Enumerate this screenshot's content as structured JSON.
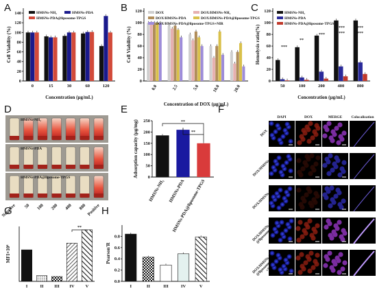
{
  "panels": [
    "A",
    "B",
    "C",
    "D",
    "E",
    "F",
    "G",
    "H"
  ],
  "chart_data": [
    {
      "id": "A",
      "type": "bar",
      "ylabel": "Cell Viability (%)",
      "xlabel": "Concentration (μg/mL)",
      "categories": [
        "0",
        "15",
        "30",
        "60",
        "120"
      ],
      "ylim": [
        0,
        150
      ],
      "yticks": [
        "0",
        "20",
        "40",
        "60",
        "80",
        "100",
        "120",
        "140"
      ],
      "series": [
        {
          "name": "HMSNs-NH₂",
          "color": "#111111",
          "values": [
            100,
            92,
            93,
            98,
            72
          ]
        },
        {
          "name": "HMSNs-PDA",
          "color": "#1a1a8c",
          "values": [
            100,
            90,
            100,
            101,
            134
          ]
        },
        {
          "name": "HMSNs-PDA@liposome-TPGS",
          "color": "#d24a3a",
          "values": [
            100,
            90,
            100,
            101,
            100
          ]
        }
      ]
    },
    {
      "id": "B",
      "type": "bar",
      "ylabel": "Cell Viability (%)",
      "xlabel": "Concentration of DOX (μg/mL)",
      "categories": [
        "0.0",
        "2.5",
        "5.0",
        "10.0",
        "20.0"
      ],
      "ylim": [
        0,
        125
      ],
      "yticks": [
        "0",
        "20",
        "40",
        "60",
        "80",
        "100",
        "120"
      ],
      "series": [
        {
          "name": "DOX",
          "color": "#cfcfcf",
          "values": [
            100,
            95,
            80,
            60,
            50
          ]
        },
        {
          "name": "DOX/HMSNs-NH₂",
          "color": "#e6b0b0",
          "values": [
            100,
            90,
            70,
            40,
            30
          ]
        },
        {
          "name": "DOX/HMSNs-PDA",
          "color": "#b08d5a",
          "values": [
            100,
            95,
            85,
            60,
            50
          ]
        },
        {
          "name": "DOX/HMSNs-PDA@liposome-TPGS",
          "color": "#d9c04a",
          "values": [
            100,
            88,
            75,
            85,
            65
          ]
        },
        {
          "name": "DOX/HMSNs-PDA@liposome-TPGS+NIR",
          "color": "#9d8cd9",
          "values": [
            100,
            75,
            60,
            45,
            25
          ]
        }
      ]
    },
    {
      "id": "C",
      "type": "bar",
      "ylabel": "Hemolysis ratio(%)",
      "xlabel": "Concentration (μg/mL)",
      "categories": [
        "50",
        "100",
        "200",
        "400",
        "800"
      ],
      "ylim": [
        0,
        125
      ],
      "yticks": [
        "0",
        "20",
        "40",
        "60",
        "80",
        "100",
        "120"
      ],
      "series": [
        {
          "name": "HMSNs-NH₂",
          "color": "#111111",
          "values": [
            36,
            58,
            78,
            104,
            104
          ]
        },
        {
          "name": "HMSNs-PDA",
          "color": "#2a2a9a",
          "values": [
            3,
            6,
            16,
            25,
            32
          ]
        },
        {
          "name": "HMSNs-PDA@liposome-TPGS",
          "color": "#c0392b",
          "values": [
            1,
            2,
            4,
            8,
            12
          ]
        }
      ],
      "sig": [
        "***",
        "**",
        "***"
      ]
    },
    {
      "id": "E",
      "type": "bar",
      "ylabel": "Adsorption capacity (μg/mg)",
      "categories": [
        "HMSNs-NH₂",
        "HMSNs-PDA",
        "HMSNs-PDA@liposome-TPGS"
      ],
      "ylim": [
        0,
        250
      ],
      "yticks": [
        "0",
        "50",
        "100",
        "150",
        "200",
        "250"
      ],
      "values": [
        185,
        210,
        150
      ],
      "colors": [
        "#111111",
        "#1a1aa0",
        "#d93b3b"
      ],
      "sig": [
        "**",
        "**"
      ]
    },
    {
      "id": "G",
      "type": "bar",
      "ylabel": "MFI×10⁴",
      "categories": [
        "I",
        "II",
        "III",
        "IV",
        "V"
      ],
      "ylim": [
        0,
        1.15
      ],
      "values": [
        0.66,
        0.12,
        0.1,
        0.8,
        1.08
      ],
      "sig": "**"
    },
    {
      "id": "H",
      "type": "bar",
      "ylabel": "Pearson'R",
      "categories": [
        "I",
        "II",
        "III",
        "IV",
        "V"
      ],
      "ylim": [
        0,
        1.0
      ],
      "yticks": [
        "0.0",
        "0.2",
        "0.4",
        "0.6",
        "0.8"
      ],
      "values": [
        0.84,
        0.43,
        0.29,
        0.49,
        0.79
      ]
    }
  ],
  "panel_d": {
    "rows": [
      "HMSNs-NH₂",
      "HMSNs-PDA",
      "HMSNs-PDA@liposome-TPGS"
    ],
    "xlabels": [
      "Negative",
      "50",
      "100",
      "200",
      "400",
      "800",
      "Positive"
    ]
  },
  "panel_f": {
    "columns": [
      "DAPI",
      "DOX",
      "MERGE",
      "Colocalization"
    ],
    "rows": [
      "DOX",
      "DOX/HMSNs-NH₂",
      "DOX/HMSNs-PDA",
      "DOX/HMSNs-PDA\n@liposome-TPGS",
      "DOX/HMSNs-PDA\n@liposome-TPGS\n+NIR"
    ]
  }
}
